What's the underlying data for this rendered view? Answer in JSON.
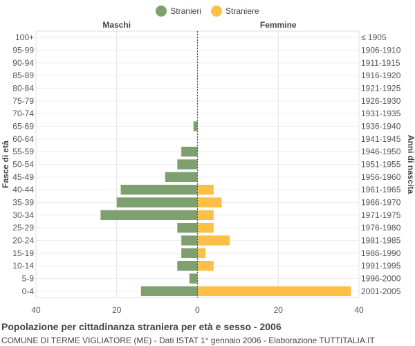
{
  "legend": [
    {
      "label": "Stranieri",
      "color": "#7ea06e"
    },
    {
      "label": "Straniere",
      "color": "#ffbe45"
    }
  ],
  "chart_data": {
    "type": "bar",
    "orientation": "horizontal-population-pyramid",
    "left_header": "Maschi",
    "right_header": "Femmine",
    "ylabel_left": "Fasce di età",
    "ylabel_right": "Anni di nascita",
    "xlim": [
      -40,
      40
    ],
    "x_ticks": [
      -40,
      -20,
      0,
      20,
      40
    ],
    "x_tick_labels": [
      "40",
      "20",
      "0",
      "20",
      "40"
    ],
    "grid": true,
    "legend_position": "top-center",
    "categories": [
      "100+",
      "95-99",
      "90-94",
      "85-89",
      "80-84",
      "75-79",
      "70-74",
      "65-69",
      "60-64",
      "55-59",
      "50-54",
      "45-49",
      "40-44",
      "35-39",
      "30-34",
      "25-29",
      "20-24",
      "15-19",
      "10-14",
      "5-9",
      "0-4"
    ],
    "birth_years": [
      "≤ 1905",
      "1906-1910",
      "1911-1915",
      "1916-1920",
      "1921-1925",
      "1926-1930",
      "1931-1935",
      "1936-1940",
      "1941-1945",
      "1946-1950",
      "1951-1955",
      "1956-1960",
      "1961-1965",
      "1966-1970",
      "1971-1975",
      "1976-1980",
      "1981-1985",
      "1986-1990",
      "1991-1995",
      "1996-2000",
      "2001-2005"
    ],
    "series": [
      {
        "name": "Stranieri",
        "color": "#7ea06e",
        "values": [
          0,
          0,
          0,
          0,
          0,
          0,
          0,
          1,
          0,
          4,
          5,
          8,
          19,
          20,
          24,
          5,
          4,
          4,
          5,
          2,
          14
        ]
      },
      {
        "name": "Straniere",
        "color": "#ffbe45",
        "values": [
          0,
          0,
          0,
          0,
          0,
          0,
          0,
          0,
          0,
          0,
          0,
          0,
          4,
          6,
          4,
          4,
          8,
          2,
          4,
          0,
          38
        ]
      }
    ]
  },
  "footer": {
    "title": "Popolazione per cittadinanza straniera per età e sesso - 2006",
    "subtitle": "COMUNE DI TERME VIGLIATORE (ME) - Dati ISTAT 1° gennaio 2006 - Elaborazione TUTTITALIA.IT"
  }
}
